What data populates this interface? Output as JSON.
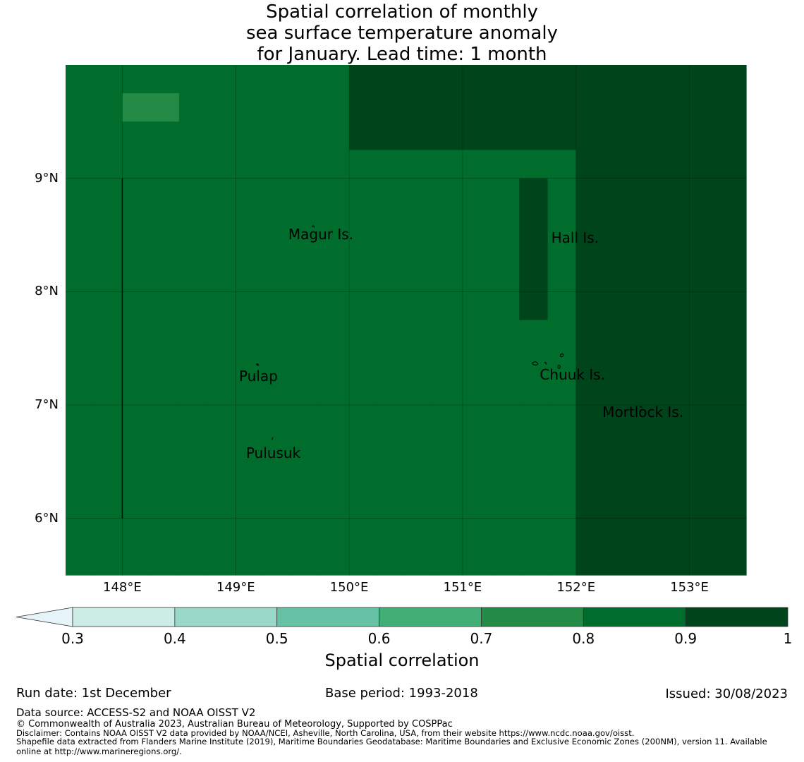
{
  "title": {
    "line1": "Spatial correlation of monthly",
    "line2": "sea surface temperature anomaly",
    "line3": "for January. Lead time: 1 month"
  },
  "map": {
    "lon_range": [
      147.5,
      153.5
    ],
    "lat_range": [
      5.5,
      10.0
    ],
    "cell_size_deg": 0.25,
    "lat_ticks": [
      {
        "value": 9,
        "label": "9°N"
      },
      {
        "value": 8,
        "label": "8°N"
      },
      {
        "value": 7,
        "label": "7°N"
      },
      {
        "value": 6,
        "label": "6°N"
      }
    ],
    "lon_ticks": [
      {
        "value": 148,
        "label": "148°E"
      },
      {
        "value": 149,
        "label": "149°E"
      },
      {
        "value": 150,
        "label": "150°E"
      },
      {
        "value": 151,
        "label": "151°E"
      },
      {
        "value": 152,
        "label": "152°E"
      },
      {
        "value": 153,
        "label": "153°E"
      }
    ],
    "boundary_line": {
      "lon": 148.0,
      "lat_from": 6.0,
      "lat_to": 9.0
    },
    "grid_rows_north_to_south": [
      "666666666677777777777777",
      "665566666677777777777777",
      "666666666677777777777777",
      "666666666666666666777777",
      "666666666666666676777777",
      "666666666666666676777777",
      "666666666666666676777777",
      "666666666666666676777777",
      "666666666666666676777777",
      "666666666666666666777777",
      "666666666666666666777777",
      "666666666666666666777777",
      "666666666666666666777777",
      "666666666666666666777777",
      "666666666666666666777777",
      "666666666666666666777777",
      "666666666666666666777777",
      "666666666666666666777777"
    ],
    "places": [
      {
        "name": "Magur Is.",
        "lon": 149.75,
        "lat": 8.5
      },
      {
        "name": "Hall Is.",
        "lon": 151.99,
        "lat": 8.47
      },
      {
        "name": "Pulap",
        "lon": 149.2,
        "lat": 7.25
      },
      {
        "name": "Chuuk Is.",
        "lon": 151.97,
        "lat": 7.26
      },
      {
        "name": "Mortlock Is.",
        "lon": 152.59,
        "lat": 6.93
      },
      {
        "name": "Pulusuk",
        "lon": 149.33,
        "lat": 6.57
      }
    ]
  },
  "colorbar": {
    "ticks": [
      "0.3",
      "0.4",
      "0.5",
      "0.6",
      "0.7",
      "0.8",
      "0.9",
      "1"
    ],
    "colors": [
      "#e6f4f9",
      "#ccece6",
      "#99d8c9",
      "#66c2a4",
      "#41ae76",
      "#238b45",
      "#006d2c",
      "#00441b"
    ],
    "label": "Spatial correlation"
  },
  "run_date": "Run date: 1st December",
  "base_period": "Base period: 1993-2018",
  "issued": "Issued: 30/08/2023",
  "data_source": "Data source: ACCESS-S2 and NOAA OISST V2",
  "copyright": "© Commonwealth of Australia 2023, Australian Bureau of Meteorology, Supported by COSPPac",
  "disclaimer": "Disclaimer: Contains NOAA OISST V2 data provided by NOAA/NCEI, Asheville, North Carolina, USA, from their website https://www.ncdc.noaa.gov/oisst.",
  "shapefile_line1": "Shapefile data extracted from Flanders Marine Institute (2019), Maritime Boundaries Geodatabase: Maritime Boundaries and Exclusive Economic Zones (200NM), version 11. Available",
  "shapefile_line2": "online at http://www.marineregions.org/."
}
